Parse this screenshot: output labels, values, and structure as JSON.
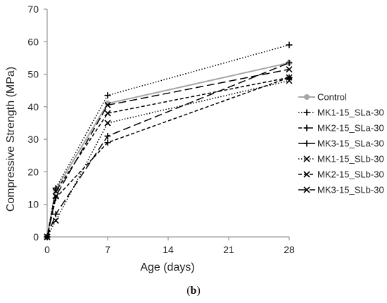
{
  "chart_data": {
    "type": "line",
    "title": "",
    "xlabel": "Age (days)",
    "ylabel": "Compressive Strength (MPa)",
    "xlim": [
      0,
      28
    ],
    "ylim": [
      0,
      70
    ],
    "xticks": [
      0,
      7,
      14,
      21,
      28
    ],
    "yticks": [
      0,
      10,
      20,
      30,
      40,
      50,
      60,
      70
    ],
    "grid": false,
    "legend_position": "right",
    "panel_label": {
      "open": "(",
      "letter": "b",
      "close": ")"
    },
    "series": [
      {
        "name": "Control",
        "x": [
          0,
          1,
          7,
          28
        ],
        "values": [
          0,
          14.5,
          41,
          53.5
        ],
        "color": "#a6a6a6",
        "dash": "solid",
        "marker": "circle"
      },
      {
        "name": "MK1-15_SLa-30",
        "x": [
          0,
          1,
          7,
          28
        ],
        "values": [
          0,
          15,
          43.5,
          59
        ],
        "color": "#000000",
        "dash": "dotted",
        "marker": "plus"
      },
      {
        "name": "MK2-15_SLa-30",
        "x": [
          0,
          1,
          7,
          28
        ],
        "values": [
          0,
          12,
          29,
          49
        ],
        "color": "#000000",
        "dash": "dashed",
        "marker": "plus"
      },
      {
        "name": "MK3-15_SLa-30",
        "x": [
          0,
          1,
          7,
          28
        ],
        "values": [
          0,
          7,
          31,
          53.5
        ],
        "color": "#000000",
        "dash": "longdash",
        "marker": "plus"
      },
      {
        "name": "MK1-15_SLb-30",
        "x": [
          0,
          1,
          7,
          28
        ],
        "values": [
          0,
          5,
          35,
          48
        ],
        "color": "#000000",
        "dash": "dotted",
        "marker": "x"
      },
      {
        "name": "MK2-15_SLb-30",
        "x": [
          0,
          1,
          7,
          28
        ],
        "values": [
          0,
          14,
          38,
          49
        ],
        "color": "#000000",
        "dash": "dashed",
        "marker": "x"
      },
      {
        "name": "MK3-15_SLb-30",
        "x": [
          0,
          1,
          7,
          28
        ],
        "values": [
          0,
          12.5,
          40.5,
          51.5
        ],
        "color": "#000000",
        "dash": "longdash",
        "marker": "x"
      }
    ]
  }
}
